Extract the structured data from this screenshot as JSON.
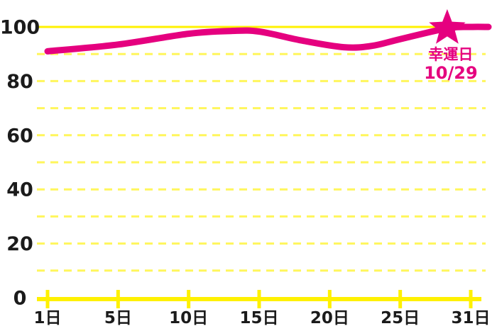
{
  "page": {
    "background_color": "#ffffff"
  },
  "chart_data": {
    "type": "line",
    "title": "",
    "xlabel": "",
    "ylabel": "",
    "ylim": [
      0,
      100
    ],
    "gridline_step": 10,
    "grid_style": {
      "dashed_color": "#fff65c",
      "solid_color": "#fff100",
      "solid_line_at_value": 100,
      "axis_line_at_value": 0,
      "horizontal_only": true
    },
    "x_ticks": [
      {
        "day": 1,
        "label": "1日"
      },
      {
        "day": 5,
        "label": "5日"
      },
      {
        "day": 10,
        "label": "10日"
      },
      {
        "day": 15,
        "label": "15日"
      },
      {
        "day": 20,
        "label": "20日"
      },
      {
        "day": 25,
        "label": "25日"
      },
      {
        "day": 31,
        "label": "31日"
      }
    ],
    "y_ticks": [
      {
        "value": 0,
        "label": "0"
      },
      {
        "value": 20,
        "label": "20"
      },
      {
        "value": 40,
        "label": "40"
      },
      {
        "value": 60,
        "label": "60"
      },
      {
        "value": 80,
        "label": "80"
      },
      {
        "value": 100,
        "label": "100"
      }
    ],
    "series": [
      {
        "name": "fortune-score",
        "color": "#e5007f",
        "stroke_width": 9,
        "points": [
          {
            "day": 1,
            "value": 91
          },
          {
            "day": 5,
            "value": 93.5
          },
          {
            "day": 10,
            "value": 97.5
          },
          {
            "day": 13,
            "value": 98.5
          },
          {
            "day": 15,
            "value": 98.3
          },
          {
            "day": 18,
            "value": 95
          },
          {
            "day": 21,
            "value": 92.5
          },
          {
            "day": 23,
            "value": 93
          },
          {
            "day": 25,
            "value": 95.5
          },
          {
            "day": 29,
            "value": 99.5
          },
          {
            "day": 31,
            "value": 100
          }
        ]
      }
    ],
    "annotation": {
      "day": 29,
      "value": 99.5,
      "marker": "star-icon",
      "label": "幸運日",
      "date": "10/29",
      "color": "#e5007f"
    },
    "layout_hints": {
      "x_ticks_evenly_spaced": true,
      "line_extends_to_right_edge": true,
      "legend": "none",
      "y_labels_centered_column": true
    }
  }
}
